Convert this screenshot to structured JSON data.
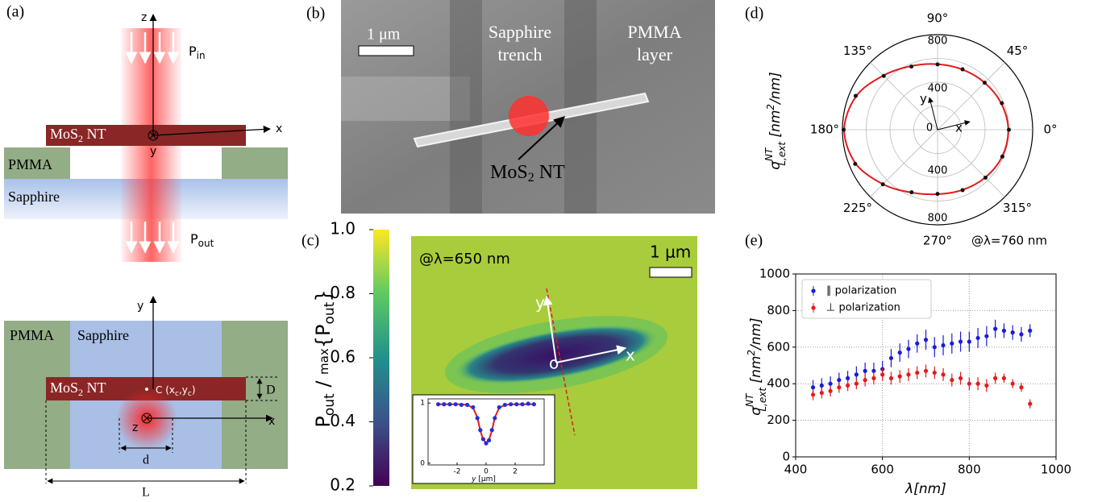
{
  "panel_a": {
    "label": "(a)",
    "top": {
      "axis_z": "z",
      "axis_x": "x",
      "axis_y": "y",
      "p_in": [
        "P",
        "in"
      ],
      "p_out": [
        "P",
        "out"
      ],
      "nanotube": [
        "MoS",
        "2",
        " NT"
      ],
      "pmma": "PMMA",
      "sapphire": "Sapphire"
    },
    "bottom": {
      "axis_y": "y",
      "axis_x": "x",
      "axis_z": "z",
      "pmma": "PMMA",
      "sapphire": "Sapphire",
      "nanotube": [
        "MoS",
        "2",
        " NT"
      ],
      "center": [
        "C  (x",
        "c",
        ",y",
        "c",
        ")"
      ],
      "diameter": "d",
      "height": "D",
      "length": "L"
    }
  },
  "panel_b": {
    "label": "(b)",
    "scale": "1 μm",
    "trench": [
      "Sapphire",
      "trench"
    ],
    "layer": [
      "PMMA",
      "layer"
    ],
    "nanotube": [
      "MoS",
      "2",
      " NT"
    ]
  },
  "panel_c": {
    "label": "(c)",
    "wavelength": "@λ=650 nm",
    "scale": "1 μm",
    "axis_y": "y",
    "axis_x": "x",
    "origin": "o"
  },
  "panel_d": {
    "label": "(d)"
  },
  "panel_e": {
    "label": "(e)"
  },
  "chart_data": [
    {
      "type": "colorbar",
      "ylabel": [
        "P",
        "out",
        " / ",
        "max",
        "{P",
        "out",
        "}"
      ],
      "ylim": [
        0.2,
        1.0
      ],
      "yticks": [
        0.2,
        0.4,
        0.6,
        0.8,
        {
          "value": 1.0,
          "label": "1.0"
        }
      ],
      "colors": [
        "#440154",
        "#3b528b",
        "#21918c",
        "#5ec962",
        "#fde725"
      ]
    },
    {
      "type": "line",
      "xlabel": [
        "y",
        "  [μm]"
      ],
      "xlim": [
        -4,
        4
      ],
      "ylim": [
        -0.03,
        1.07
      ],
      "xticks": [
        -2,
        0,
        2
      ],
      "yticks": [
        0,
        1
      ],
      "x": [
        -3.3,
        -2.9,
        -2.5,
        -2.1,
        -1.7,
        -1.3,
        -0.9,
        -0.6,
        -0.4,
        -0.2,
        0,
        0.2,
        0.4,
        0.6,
        0.9,
        1.3,
        1.7,
        2.1,
        2.5,
        2.9,
        3.3
      ],
      "series": [
        {
          "color": "#1f2fd8",
          "values": [
            0.98,
            0.98,
            0.98,
            0.98,
            0.97,
            0.97,
            0.93,
            0.75,
            0.55,
            0.4,
            0.33,
            0.38,
            0.55,
            0.75,
            0.93,
            0.97,
            0.98,
            0.98,
            0.98,
            0.99,
            0.98
          ]
        },
        {
          "color": "#e31a1c",
          "values": [
            0.98,
            0.98,
            0.98,
            0.98,
            0.98,
            0.97,
            0.92,
            0.76,
            0.54,
            0.39,
            0.34,
            0.39,
            0.54,
            0.76,
            0.92,
            0.97,
            0.98,
            0.98,
            0.98,
            0.98,
            0.98
          ]
        }
      ]
    },
    {
      "type": "polar",
      "annotation": "@λ=760 nm",
      "ylabel": [
        "σ",
        "NT",
        "L,ext",
        "  [nm",
        "2",
        "/nm]"
      ],
      "arrow_labels": [
        "y",
        "x"
      ],
      "rlim": [
        0,
        800
      ],
      "rgrid": [
        200,
        400,
        600,
        800
      ],
      "rticks": [
        0,
        400,
        800
      ],
      "thetaticks": [
        {
          "value": 0,
          "label": "0°"
        },
        {
          "value": 45,
          "label": "45°"
        },
        {
          "value": 90,
          "label": "90°"
        },
        {
          "value": 135,
          "label": "135°"
        },
        {
          "value": 180,
          "label": "180°"
        },
        {
          "value": 225,
          "label": "225°"
        },
        {
          "value": 270,
          "label": "270°"
        },
        {
          "value": 315,
          "label": "315°"
        }
      ],
      "theta": [
        0,
        22.5,
        45,
        67.5,
        90,
        112.5,
        135,
        157.5,
        180,
        202.5,
        225,
        247.5,
        270,
        292.5,
        315,
        337.5
      ],
      "series": [
        {
          "color": "#111111",
          "values": [
            600,
            585,
            560,
            550,
            550,
            575,
            640,
            745,
            790,
            750,
            650,
            570,
            540,
            550,
            570,
            590
          ]
        },
        {
          "color": "#e31a1c",
          "values": [
            595,
            580,
            560,
            548,
            552,
            580,
            645,
            740,
            785,
            745,
            648,
            572,
            542,
            548,
            568,
            588
          ]
        }
      ]
    },
    {
      "type": "errorbar",
      "xlabel": "λ[nm]",
      "ylabel": [
        "σ",
        "NT",
        "L,ext",
        "  [nm",
        "2",
        "/nm]"
      ],
      "xlim": [
        400,
        1000
      ],
      "ylim": [
        0,
        1000
      ],
      "xticks": [
        400,
        600,
        800,
        1000
      ],
      "yticks": [
        0,
        200,
        400,
        600,
        800,
        1000
      ],
      "grid": true,
      "legend": "upper left",
      "x": [
        440,
        460,
        480,
        500,
        520,
        540,
        560,
        580,
        600,
        620,
        640,
        660,
        680,
        700,
        720,
        740,
        760,
        780,
        800,
        820,
        840,
        860,
        880,
        900,
        920,
        940
      ],
      "series": [
        {
          "name": "∥ polarization",
          "color": "#1a1adb",
          "values": [
            380,
            390,
            400,
            420,
            430,
            450,
            470,
            470,
            480,
            540,
            570,
            590,
            620,
            640,
            600,
            610,
            620,
            630,
            630,
            650,
            660,
            700,
            690,
            680,
            670,
            690
          ],
          "errors": [
            40,
            40,
            40,
            40,
            40,
            45,
            45,
            45,
            45,
            50,
            50,
            50,
            50,
            55,
            55,
            55,
            55,
            55,
            55,
            55,
            55,
            50,
            40,
            40,
            40,
            35
          ]
        },
        {
          "name": "⊥ polarization",
          "color": "#e31a1c",
          "values": [
            340,
            350,
            360,
            380,
            390,
            400,
            420,
            430,
            450,
            430,
            440,
            450,
            460,
            470,
            460,
            450,
            420,
            430,
            400,
            400,
            390,
            430,
            430,
            400,
            380,
            290
          ],
          "errors": [
            30,
            30,
            30,
            30,
            30,
            30,
            35,
            35,
            35,
            35,
            35,
            35,
            35,
            35,
            35,
            35,
            35,
            35,
            35,
            35,
            35,
            30,
            25,
            25,
            25,
            25
          ]
        }
      ]
    }
  ]
}
